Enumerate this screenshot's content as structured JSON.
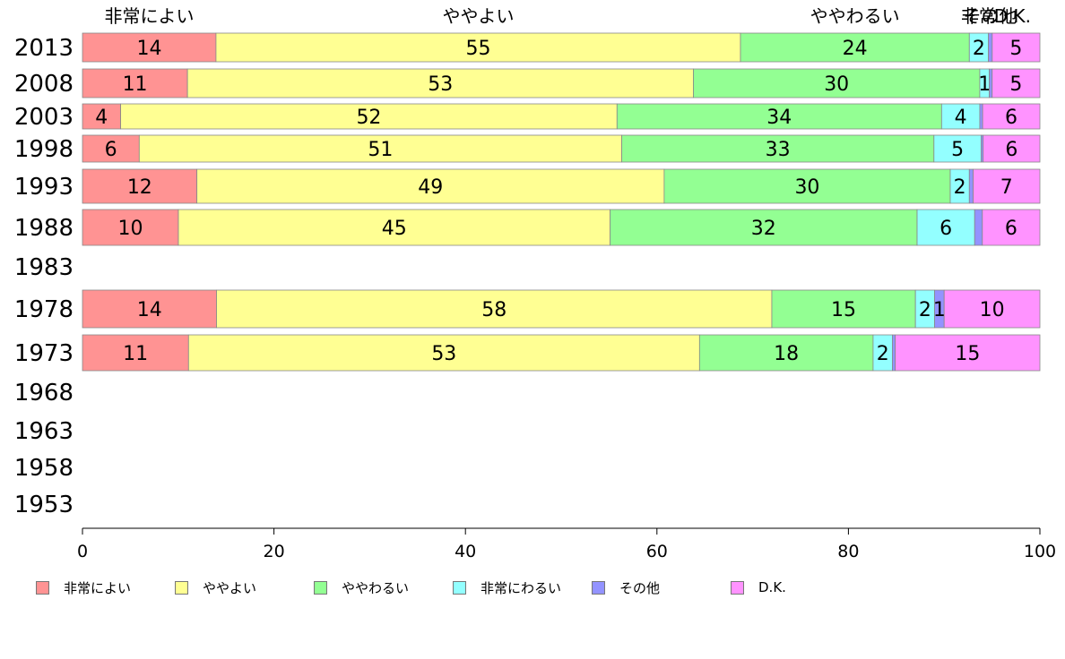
{
  "chart_data": {
    "type": "bar",
    "orientation": "horizontal",
    "stacked": true,
    "categories": [
      "2013",
      "2008",
      "2003",
      "1998",
      "1993",
      "1988",
      "1983",
      "1978",
      "1973",
      "1968",
      "1963",
      "1958",
      "1953"
    ],
    "series": [
      {
        "name": "非常によい",
        "color": "#ff9393",
        "values": [
          14,
          11,
          4,
          6,
          12,
          10,
          null,
          14,
          11,
          null,
          null,
          null,
          null
        ]
      },
      {
        "name": "ややよい",
        "color": "#ffff93",
        "values": [
          55,
          53,
          52,
          51,
          49,
          45,
          null,
          58,
          53,
          null,
          null,
          null,
          null
        ]
      },
      {
        "name": "ややわるい",
        "color": "#93ff93",
        "values": [
          24,
          30,
          34,
          33,
          30,
          32,
          null,
          15,
          18,
          null,
          null,
          null,
          null
        ]
      },
      {
        "name": "非常にわるい",
        "color": "#93ffff",
        "values": [
          2,
          1,
          4,
          5,
          2,
          6,
          null,
          2,
          2,
          null,
          null,
          null,
          null
        ]
      },
      {
        "name": "その他",
        "color": "#9393ff",
        "values": [
          0.4,
          0.3,
          0.3,
          0.2,
          0.4,
          0.8,
          null,
          1,
          0.3,
          null,
          null,
          null,
          null
        ]
      },
      {
        "name": "D.K.",
        "color": "#ff93ff",
        "values": [
          5,
          5,
          6,
          6,
          7,
          6,
          null,
          10,
          15,
          null,
          null,
          null,
          null
        ]
      }
    ],
    "top_labels": [
      "非常によい",
      "ややよい",
      "ややわるい",
      "非常",
      "その他",
      "D.K."
    ],
    "xlim": [
      0,
      100
    ],
    "xticks": [
      0,
      20,
      40,
      60,
      80,
      100
    ],
    "legend_position": "bottom",
    "grid": false
  }
}
